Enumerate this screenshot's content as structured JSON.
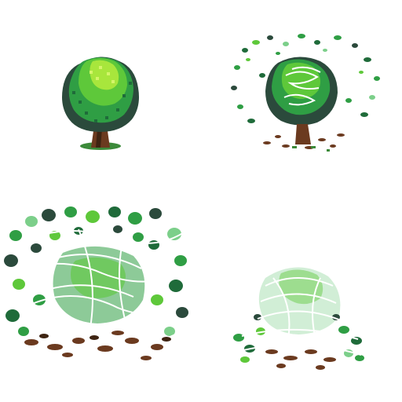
{
  "sprite_sheet": {
    "frame_count": 4,
    "frames": [
      {
        "id": 1,
        "stage": "intact",
        "disintegration": 0.0
      },
      {
        "id": 2,
        "stage": "leaves-scattering",
        "disintegration": 0.3
      },
      {
        "id": 3,
        "stage": "bursting",
        "disintegration": 0.75
      },
      {
        "id": 4,
        "stage": "fading",
        "disintegration": 0.95
      }
    ],
    "colors": {
      "background": "#ffffff",
      "leaf_light": "#a8e63c",
      "leaf_bright": "#5ec83a",
      "leaf_mid": "#2f9e44",
      "leaf_dark": "#1f6b3a",
      "leaf_shadow": "#2b4a3c",
      "leaf_pale": "#7ccf8a",
      "trunk": "#6b3a1f",
      "trunk_dark": "#3e2412",
      "ground_grass": "#3c8a3a",
      "scribble": "#ffffff"
    },
    "icons": [
      "bush-tree-sprite",
      "leaf-particle",
      "dirt-particle"
    ]
  }
}
